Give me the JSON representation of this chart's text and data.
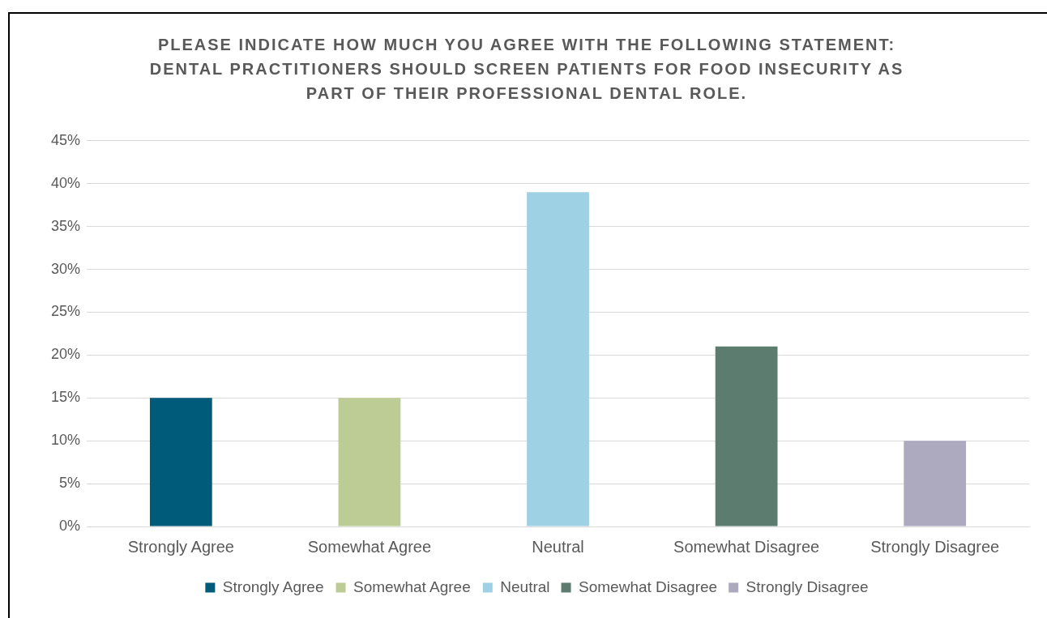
{
  "chart_data": {
    "type": "bar",
    "title": "PLEASE INDICATE HOW MUCH YOU AGREE WITH THE FOLLOWING STATEMENT: DENTAL PRACTITIONERS SHOULD SCREEN PATIENTS FOR FOOD INSECURITY AS PART OF THEIR PROFESSIONAL DENTAL ROLE.",
    "categories": [
      "Strongly Agree",
      "Somewhat Agree",
      "Neutral",
      "Somewhat Disagree",
      "Strongly Disagree"
    ],
    "series": [
      {
        "name": "Strongly Agree",
        "color": "#005a7a",
        "values": [
          15,
          null,
          null,
          null,
          null
        ]
      },
      {
        "name": "Somewhat Agree",
        "color": "#bccc94",
        "values": [
          null,
          15,
          null,
          null,
          null
        ]
      },
      {
        "name": "Neutral",
        "color": "#9fd1e4",
        "values": [
          null,
          null,
          39,
          null,
          null
        ]
      },
      {
        "name": "Somewhat Disagree",
        "color": "#5b7c6e",
        "values": [
          null,
          null,
          null,
          21,
          null
        ]
      },
      {
        "name": "Strongly Disagree",
        "color": "#adaabf",
        "values": [
          null,
          null,
          null,
          null,
          10
        ]
      }
    ],
    "ylim": [
      0,
      45
    ],
    "yticks": [
      {
        "value": 0,
        "label": "0%"
      },
      {
        "value": 5,
        "label": "5%"
      },
      {
        "value": 10,
        "label": "10%"
      },
      {
        "value": 15,
        "label": "15%"
      },
      {
        "value": 20,
        "label": "20%"
      },
      {
        "value": 25,
        "label": "25%"
      },
      {
        "value": 30,
        "label": "30%"
      },
      {
        "value": 35,
        "label": "35%"
      },
      {
        "value": 40,
        "label": "40%"
      },
      {
        "value": 45,
        "label": "45%"
      }
    ],
    "grid": "y",
    "legend": "bottom"
  }
}
